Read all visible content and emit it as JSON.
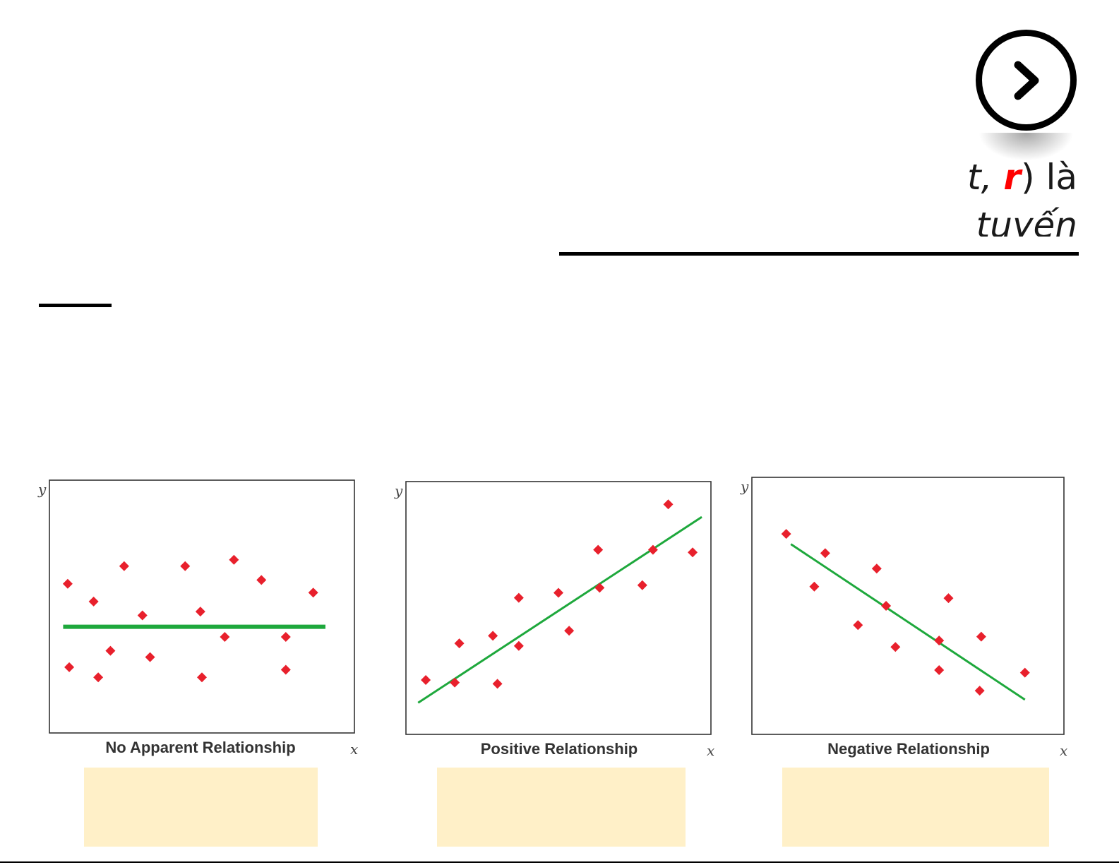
{
  "slide": {
    "fragment_line1_a": "ıt, ",
    "fragment_line1_r": "r",
    "fragment_line1_b": ") là",
    "fragment_line2": "tuyến"
  },
  "colors": {
    "point": "#e8202c",
    "line": "#1ea83c",
    "frame": "#333333",
    "caption_box": "#fff0c8"
  },
  "chart_data": [
    {
      "type": "scatter",
      "title": "No Apparent Relationship",
      "xlabel": "x",
      "ylabel": "y",
      "xlim": [
        0,
        10
      ],
      "ylim": [
        0,
        10
      ],
      "grid": false,
      "points": [
        [
          0.6,
          5.9
        ],
        [
          1.45,
          5.2
        ],
        [
          2.45,
          6.6
        ],
        [
          3.05,
          4.65
        ],
        [
          4.45,
          6.6
        ],
        [
          4.95,
          4.8
        ],
        [
          6.05,
          6.85
        ],
        [
          6.95,
          6.05
        ],
        [
          8.65,
          5.55
        ],
        [
          0.65,
          2.6
        ],
        [
          2.0,
          3.25
        ],
        [
          1.6,
          2.2
        ],
        [
          3.3,
          3.0
        ],
        [
          5.0,
          2.2
        ],
        [
          5.75,
          3.8
        ],
        [
          7.75,
          2.5
        ],
        [
          7.75,
          3.8
        ]
      ],
      "trend_line": [
        [
          0.45,
          4.2
        ],
        [
          9.05,
          4.2
        ]
      ]
    },
    {
      "type": "scatter",
      "title": "Positive Relationship",
      "xlabel": "x",
      "ylabel": "y",
      "xlim": [
        0,
        10
      ],
      "ylim": [
        0,
        10
      ],
      "grid": false,
      "points": [
        [
          0.65,
          2.15
        ],
        [
          1.6,
          2.05
        ],
        [
          1.75,
          3.6
        ],
        [
          2.85,
          3.9
        ],
        [
          3.0,
          2.0
        ],
        [
          3.7,
          3.5
        ],
        [
          3.7,
          5.4
        ],
        [
          5.0,
          5.6
        ],
        [
          5.35,
          4.1
        ],
        [
          6.3,
          7.3
        ],
        [
          6.35,
          5.8
        ],
        [
          7.75,
          5.9
        ],
        [
          8.1,
          7.3
        ],
        [
          8.6,
          9.1
        ],
        [
          9.4,
          7.2
        ]
      ],
      "trend_line": [
        [
          0.4,
          1.25
        ],
        [
          9.7,
          8.6
        ]
      ]
    },
    {
      "type": "scatter",
      "title": "Negative Relationship",
      "xlabel": "x",
      "ylabel": "y",
      "xlim": [
        0,
        10
      ],
      "ylim": [
        0,
        10
      ],
      "grid": false,
      "points": [
        [
          1.1,
          7.8
        ],
        [
          2.0,
          5.75
        ],
        [
          2.35,
          7.05
        ],
        [
          3.4,
          4.25
        ],
        [
          4.0,
          6.45
        ],
        [
          4.6,
          3.4
        ],
        [
          4.3,
          5.0
        ],
        [
          6.0,
          3.65
        ],
        [
          6.0,
          2.5
        ],
        [
          6.3,
          5.3
        ],
        [
          7.3,
          1.7
        ],
        [
          7.35,
          3.8
        ],
        [
          8.75,
          2.4
        ]
      ],
      "trend_line": [
        [
          1.25,
          7.4
        ],
        [
          8.75,
          1.35
        ]
      ]
    }
  ]
}
